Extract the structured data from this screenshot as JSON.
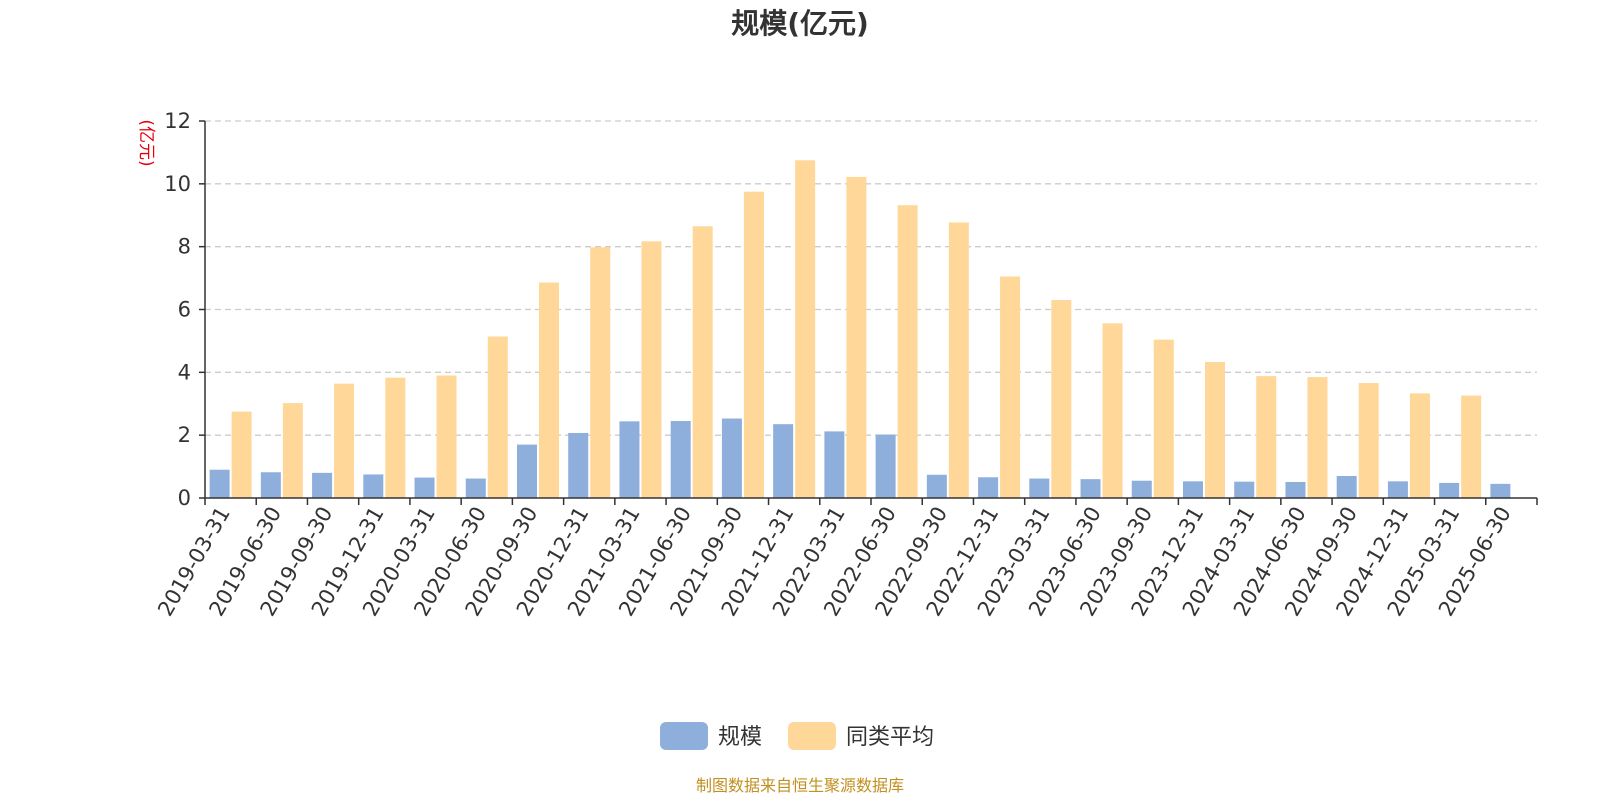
{
  "chart_data": {
    "type": "bar",
    "title": "规模(亿元)",
    "ylabel": "(亿元)",
    "ylim": [
      0,
      12
    ],
    "yticks": [
      0,
      2,
      4,
      6,
      8,
      10,
      12
    ],
    "grid": true,
    "legend_position": "bottom",
    "categories": [
      "2019-03-31",
      "2019-06-30",
      "2019-09-30",
      "2019-12-31",
      "2020-03-31",
      "2020-06-30",
      "2020-09-30",
      "2020-12-31",
      "2021-03-31",
      "2021-06-30",
      "2021-09-30",
      "2021-12-31",
      "2022-03-31",
      "2022-06-30",
      "2022-09-30",
      "2022-12-31",
      "2023-03-31",
      "2023-06-30",
      "2023-09-30",
      "2023-12-31",
      "2024-03-31",
      "2024-06-30",
      "2024-09-30",
      "2024-12-31",
      "2025-03-31",
      "2025-06-30"
    ],
    "series": [
      {
        "name": "规模",
        "color": "#8eaedc",
        "values": [
          0.9,
          0.82,
          0.8,
          0.75,
          0.65,
          0.62,
          1.7,
          2.07,
          2.44,
          2.45,
          2.53,
          2.35,
          2.12,
          2.02,
          0.74,
          0.66,
          0.62,
          0.6,
          0.55,
          0.53,
          0.52,
          0.51,
          0.7,
          0.53,
          0.48,
          0.45
        ]
      },
      {
        "name": "同类平均",
        "color": "#ffd899",
        "values": [
          2.75,
          3.02,
          3.64,
          3.83,
          3.9,
          5.14,
          6.86,
          7.98,
          8.17,
          8.65,
          9.75,
          10.75,
          10.22,
          9.32,
          8.77,
          7.05,
          6.3,
          5.56,
          5.04,
          4.33,
          3.88,
          3.85,
          3.66,
          3.33,
          3.26,
          null
        ]
      }
    ]
  },
  "source_text": "制图数据来自恒生聚源数据库"
}
